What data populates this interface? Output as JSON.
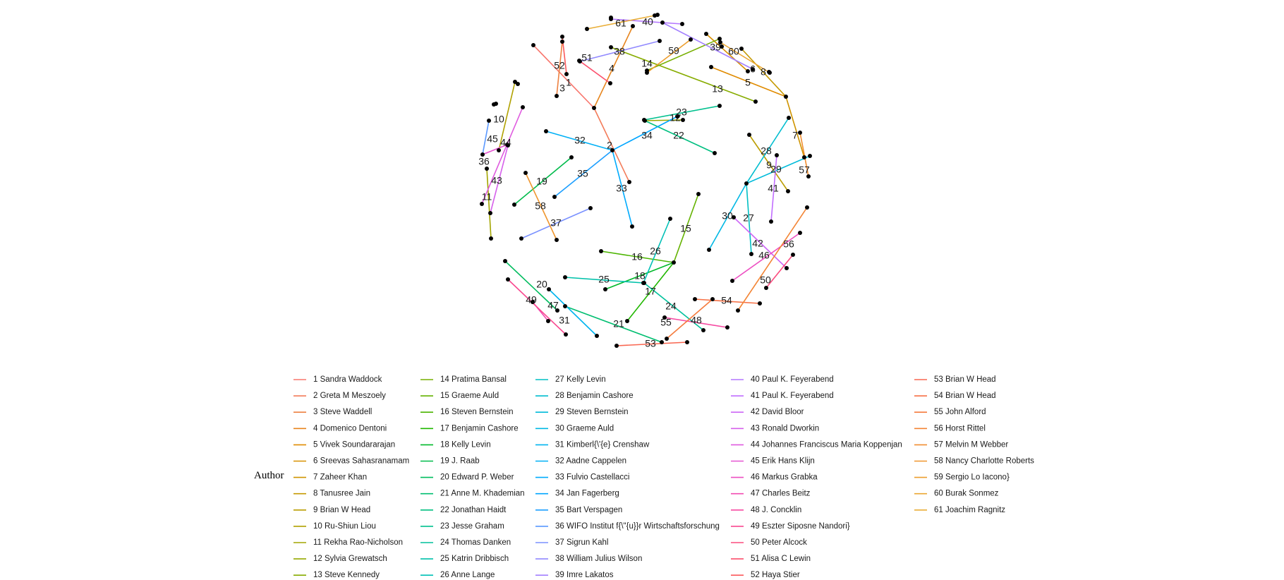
{
  "legend": {
    "title": "Author",
    "items": [
      {
        "id": "1",
        "name": "Sandra Waddock",
        "color": "#F8766D"
      },
      {
        "id": "2",
        "name": "Greta M Meszoely",
        "color": "#F37B59"
      },
      {
        "id": "3",
        "name": "Steve Waddell",
        "color": "#ED8141"
      },
      {
        "id": "4",
        "name": "Domenico Dentoni",
        "color": "#E7851E"
      },
      {
        "id": "5",
        "name": "Vivek Soundararajan",
        "color": "#E08B00"
      },
      {
        "id": "6",
        "name": "Sreevas Sahasranamam",
        "color": "#D89000"
      },
      {
        "id": "7",
        "name": "Zaheer Khan",
        "color": "#CF9400"
      },
      {
        "id": "8",
        "name": "Tanusree Jain",
        "color": "#C59900"
      },
      {
        "id": "9",
        "name": "Brian W Head",
        "color": "#BB9D00"
      },
      {
        "id": "10",
        "name": "Ru-Shiun Liou",
        "color": "#B0A100"
      },
      {
        "id": "11",
        "name": "Rekha Rao-Nicholson",
        "color": "#A3A500"
      },
      {
        "id": "12",
        "name": "Sylvia Grewatsch",
        "color": "#96A900"
      },
      {
        "id": "13",
        "name": "Steve Kennedy",
        "color": "#87AC00"
      },
      {
        "id": "14",
        "name": "Pratima Bansal",
        "color": "#77AF00"
      },
      {
        "id": "15",
        "name": "Graeme Auld",
        "color": "#64B200"
      },
      {
        "id": "16",
        "name": "Steven Bernstein",
        "color": "#4BB400"
      },
      {
        "id": "17",
        "name": "Benjamin Cashore",
        "color": "#20B700"
      },
      {
        "id": "18",
        "name": "Kelly Levin",
        "color": "#00B92A"
      },
      {
        "id": "19",
        "name": "J. Raab",
        "color": "#00BB4B"
      },
      {
        "id": "20",
        "name": "Edward P. Weber",
        "color": "#00BC5E"
      },
      {
        "id": "21",
        "name": "Anne M. Khademian",
        "color": "#00BE70"
      },
      {
        "id": "22",
        "name": "Jonathan Haidt",
        "color": "#00BF80"
      },
      {
        "id": "23",
        "name": "Jesse Graham",
        "color": "#00C08E"
      },
      {
        "id": "24",
        "name": "Thomas Danken",
        "color": "#00C19C"
      },
      {
        "id": "25",
        "name": "Katrin Dribbisch",
        "color": "#00C1AA"
      },
      {
        "id": "26",
        "name": "Anne Lange",
        "color": "#00C0B6"
      },
      {
        "id": "27",
        "name": "Kelly Levin",
        "color": "#00BFC3"
      },
      {
        "id": "28",
        "name": "Benjamin Cashore",
        "color": "#00BDCF"
      },
      {
        "id": "29",
        "name": "Steven Bernstein",
        "color": "#00BBDA"
      },
      {
        "id": "30",
        "name": "Graeme Auld",
        "color": "#00B8E4"
      },
      {
        "id": "31",
        "name": "Kimberl{\\'{e} Crenshaw",
        "color": "#00B4EF"
      },
      {
        "id": "32",
        "name": "Aadne Cappelen",
        "color": "#00B0F6"
      },
      {
        "id": "33",
        "name": "Fulvio Castellacci",
        "color": "#00ABFD"
      },
      {
        "id": "34",
        "name": "Jan Fagerberg",
        "color": "#00A5FF"
      },
      {
        "id": "35",
        "name": "Bart Verspagen",
        "color": "#1C9FFF"
      },
      {
        "id": "36",
        "name": "WIFO Institut f{\\\"{u}}r Wirtschaftsforschung",
        "color": "#5A98FF"
      },
      {
        "id": "37",
        "name": "Sigrun Kahl",
        "color": "#7A91FF"
      },
      {
        "id": "38",
        "name": "William Julius Wilson",
        "color": "#9189FF"
      },
      {
        "id": "39",
        "name": "Imre Lakatos",
        "color": "#A380FF"
      },
      {
        "id": "40",
        "name": "Paul K. Feyerabend",
        "color": "#B377FF"
      },
      {
        "id": "41",
        "name": "Paul K. Feyerabend",
        "color": "#C16EFF"
      },
      {
        "id": "42",
        "name": "David Bloor",
        "color": "#CD67F6"
      },
      {
        "id": "43",
        "name": "Ronald Dworkin",
        "color": "#D660EB"
      },
      {
        "id": "44",
        "name": "Johannes Franciscus Maria Koppenjan",
        "color": "#DF5ADF"
      },
      {
        "id": "45",
        "name": "Erik Hans Klijn",
        "color": "#E654D1"
      },
      {
        "id": "46",
        "name": "Markus Grabka",
        "color": "#ED4FC2"
      },
      {
        "id": "47",
        "name": "Charles Beitz",
        "color": "#F24BB2"
      },
      {
        "id": "48",
        "name": "J. Concklin",
        "color": "#F64AA2"
      },
      {
        "id": "49",
        "name": "Eszter Siposne Nandori}",
        "color": "#F94990"
      },
      {
        "id": "50",
        "name": "Peter Alcock",
        "color": "#FB4B7E"
      },
      {
        "id": "51",
        "name": "Alisa C Lewin",
        "color": "#FC4F6C"
      },
      {
        "id": "52",
        "name": "Haya Stier",
        "color": "#FB5A5C"
      },
      {
        "id": "53",
        "name": "Brian W Head",
        "color": "#F96650"
      },
      {
        "id": "54",
        "name": "Brian W Head",
        "color": "#F77146"
      },
      {
        "id": "55",
        "name": "John Alford",
        "color": "#F57B3D"
      },
      {
        "id": "56",
        "name": "Horst Rittel",
        "color": "#F38535"
      },
      {
        "id": "57",
        "name": "Melvin M Webber",
        "color": "#F18E30"
      },
      {
        "id": "58",
        "name": "Nancy Charlotte Roberts",
        "color": "#EF962E"
      },
      {
        "id": "59",
        "name": "Sergio Lo Iacono}",
        "color": "#ED9E2E"
      },
      {
        "id": "60",
        "name": "Burak Sonmez",
        "color": "#EBA632"
      },
      {
        "id": "61",
        "name": "Joachim Ragnitz",
        "color": "#E9AE38"
      }
    ]
  },
  "graph": {
    "node_color": "#000000",
    "label_color": "#1a1a1a",
    "edges": [
      {
        "id": "1",
        "label": "1",
        "color": "#F8766D"
      },
      {
        "id": "2",
        "label": "2",
        "color": "#F37B59"
      },
      {
        "id": "3",
        "label": "3",
        "color": "#ED8141"
      },
      {
        "id": "4",
        "label": "4",
        "color": "#E7851E"
      },
      {
        "id": "5",
        "label": "5",
        "color": "#E08B00"
      },
      {
        "id": "6",
        "label": "6",
        "color": "#D89000"
      },
      {
        "id": "7",
        "label": "7",
        "color": "#CF9400"
      },
      {
        "id": "8",
        "label": "8",
        "color": "#C59900"
      },
      {
        "id": "9",
        "label": "9",
        "color": "#BB9D00"
      },
      {
        "id": "10",
        "label": "10",
        "color": "#B0A100"
      },
      {
        "id": "11",
        "label": "11",
        "color": "#A3A500"
      },
      {
        "id": "12",
        "label": "12",
        "color": "#96A900"
      },
      {
        "id": "13",
        "label": "13",
        "color": "#87AC00"
      },
      {
        "id": "14",
        "label": "14",
        "color": "#77AF00"
      },
      {
        "id": "15",
        "label": "15",
        "color": "#64B200"
      },
      {
        "id": "16",
        "label": "16",
        "color": "#4BB400"
      },
      {
        "id": "17",
        "label": "17",
        "color": "#20B700"
      },
      {
        "id": "18",
        "label": "18",
        "color": "#00B92A"
      },
      {
        "id": "19",
        "label": "19",
        "color": "#00BB4B"
      },
      {
        "id": "20",
        "label": "20",
        "color": "#00BC5E"
      },
      {
        "id": "21",
        "label": "21",
        "color": "#00BE70"
      },
      {
        "id": "22",
        "label": "22",
        "color": "#00BF80"
      },
      {
        "id": "23",
        "label": "23",
        "color": "#00C08E"
      },
      {
        "id": "24",
        "label": "24",
        "color": "#00C19C"
      },
      {
        "id": "25",
        "label": "25",
        "color": "#00C1AA"
      },
      {
        "id": "26",
        "label": "26",
        "color": "#00C0B6"
      },
      {
        "id": "27",
        "label": "27",
        "color": "#00BFC3"
      },
      {
        "id": "28",
        "label": "28",
        "color": "#00BDCF"
      },
      {
        "id": "29",
        "label": "29",
        "color": "#00BBDA"
      },
      {
        "id": "30",
        "label": "30",
        "color": "#00B8E4"
      },
      {
        "id": "31",
        "label": "31",
        "color": "#00B4EF"
      },
      {
        "id": "32",
        "label": "32",
        "color": "#00B0F6"
      },
      {
        "id": "33",
        "label": "33",
        "color": "#00ABFD"
      },
      {
        "id": "34",
        "label": "34",
        "color": "#00A5FF"
      },
      {
        "id": "35",
        "label": "35",
        "color": "#1C9FFF"
      },
      {
        "id": "36",
        "label": "36",
        "color": "#5A98FF"
      },
      {
        "id": "37",
        "label": "37",
        "color": "#7A91FF"
      },
      {
        "id": "38",
        "label": "38",
        "color": "#9189FF"
      },
      {
        "id": "39",
        "label": "39",
        "color": "#A380FF"
      },
      {
        "id": "40",
        "label": "40",
        "color": "#B377FF"
      },
      {
        "id": "41",
        "label": "41",
        "color": "#C16EFF"
      },
      {
        "id": "42",
        "label": "42",
        "color": "#CD67F6"
      },
      {
        "id": "43",
        "label": "43",
        "color": "#D660EB"
      },
      {
        "id": "44",
        "label": "44",
        "color": "#DF5ADF"
      },
      {
        "id": "45",
        "label": "45",
        "color": "#E654D1"
      },
      {
        "id": "46",
        "label": "46",
        "color": "#ED4FC2"
      },
      {
        "id": "47",
        "label": "47",
        "color": "#F24BB2"
      },
      {
        "id": "48",
        "label": "48",
        "color": "#F64AA2"
      },
      {
        "id": "49",
        "label": "49",
        "color": "#F94990"
      },
      {
        "id": "50",
        "label": "50",
        "color": "#FB4B7E"
      },
      {
        "id": "51",
        "label": "51",
        "color": "#FC4F6C"
      },
      {
        "id": "52",
        "label": "52",
        "color": "#FB5A5C"
      },
      {
        "id": "53",
        "label": "53",
        "color": "#F96650"
      },
      {
        "id": "54",
        "label": "54",
        "color": "#F77146"
      },
      {
        "id": "55",
        "label": "55",
        "color": "#F57B3D"
      },
      {
        "id": "56",
        "label": "56",
        "color": "#F38535"
      },
      {
        "id": "57",
        "label": "57",
        "color": "#F18E30"
      },
      {
        "id": "58",
        "label": "58",
        "color": "#EF962E"
      },
      {
        "id": "59",
        "label": "59",
        "color": "#ED9E2E"
      },
      {
        "id": "60",
        "label": "60",
        "color": "#EBA632"
      },
      {
        "id": "61",
        "label": "61",
        "color": "#E9AE38"
      }
    ]
  }
}
